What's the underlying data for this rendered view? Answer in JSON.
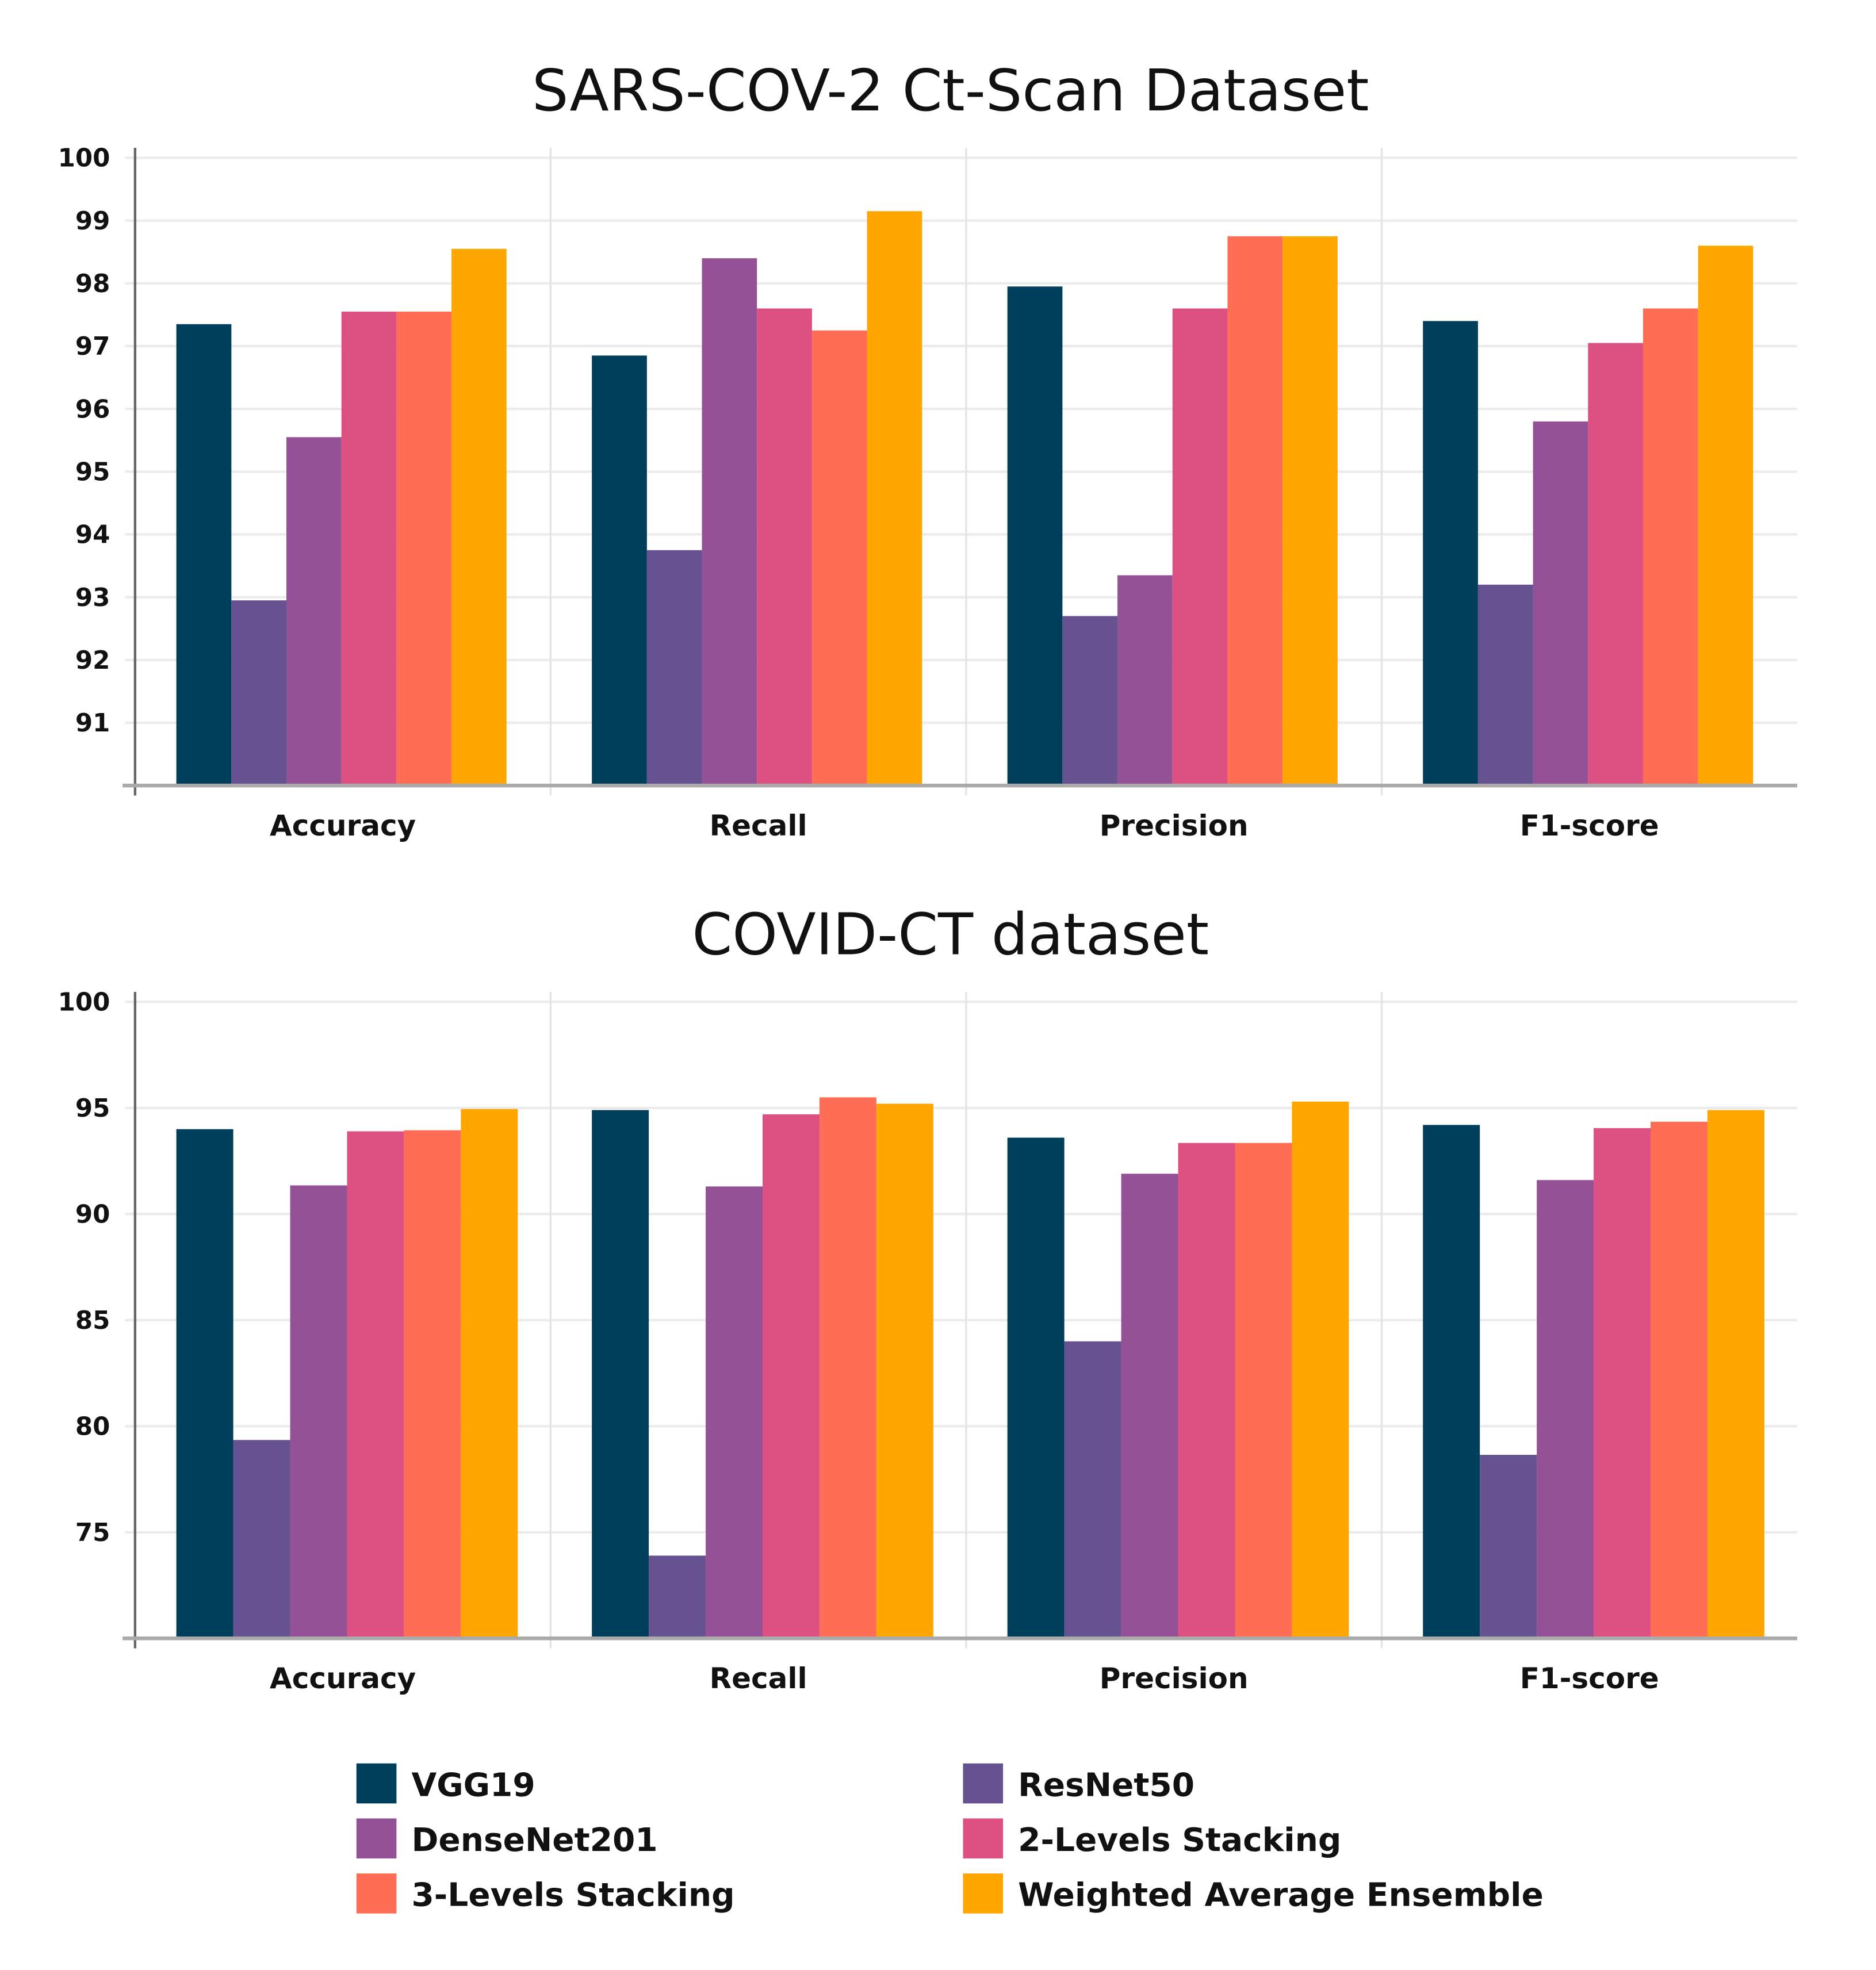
{
  "colors": {
    "VGG19": "#003f5c",
    "ResNet50": "#665191",
    "DenseNet201": "#955196",
    "2-Levels Stacking": "#dd5182",
    "3-Levels Stacking": "#ff6e54",
    "Weighted Average Ensemble": "#ffa600"
  },
  "legend": [
    "VGG19",
    "ResNet50",
    "DenseNet201",
    "2-Levels Stacking",
    "3-Levels Stacking",
    "Weighted Average Ensemble"
  ],
  "chart_data": [
    {
      "type": "bar",
      "title": "SARS-COV-2 Ct-Scan Dataset",
      "categories": [
        "Accuracy",
        "Recall",
        "Precision",
        "F1-score"
      ],
      "ylim": [
        90,
        100
      ],
      "yticks": [
        100,
        99,
        98,
        97,
        96,
        95,
        94,
        93,
        92,
        91
      ],
      "grid": true,
      "legend_position": "bottom",
      "series": [
        {
          "name": "VGG19",
          "values": [
            97.35,
            96.85,
            97.95,
            97.4
          ]
        },
        {
          "name": "ResNet50",
          "values": [
            92.95,
            93.75,
            92.7,
            93.2
          ]
        },
        {
          "name": "DenseNet201",
          "values": [
            95.55,
            98.4,
            93.35,
            95.8
          ]
        },
        {
          "name": "2-Levels Stacking",
          "values": [
            97.55,
            97.6,
            97.6,
            97.05
          ]
        },
        {
          "name": "3-Levels Stacking",
          "values": [
            97.55,
            97.25,
            98.75,
            97.6
          ]
        },
        {
          "name": "Weighted Average Ensemble",
          "values": [
            98.55,
            99.15,
            98.75,
            98.6
          ]
        }
      ]
    },
    {
      "type": "bar",
      "title": "COVID-CT dataset",
      "categories": [
        "Accuracy",
        "Recall",
        "Precision",
        "F1-score"
      ],
      "ylim": [
        70,
        100
      ],
      "yticks": [
        100,
        95,
        90,
        85,
        80,
        75
      ],
      "grid": true,
      "legend_position": "bottom",
      "series": [
        {
          "name": "VGG19",
          "values": [
            94.0,
            94.9,
            93.6,
            94.2
          ]
        },
        {
          "name": "ResNet50",
          "values": [
            79.35,
            73.9,
            84.0,
            78.65
          ]
        },
        {
          "name": "DenseNet201",
          "values": [
            91.35,
            91.3,
            91.9,
            91.6
          ]
        },
        {
          "name": "2-Levels Stacking",
          "values": [
            93.9,
            94.7,
            93.35,
            94.05
          ]
        },
        {
          "name": "3-Levels Stacking",
          "values": [
            93.95,
            95.5,
            93.35,
            94.35
          ]
        },
        {
          "name": "Weighted Average Ensemble",
          "values": [
            94.95,
            95.2,
            95.3,
            94.9
          ]
        }
      ]
    }
  ]
}
